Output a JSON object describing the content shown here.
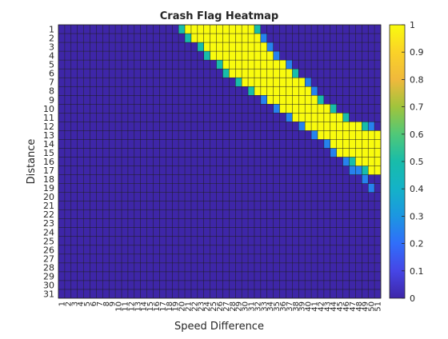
{
  "chart_data": {
    "type": "heatmap",
    "title": "Crash Flag Heatmap",
    "xlabel": "Speed Difference",
    "ylabel": "Distance",
    "x": [
      1,
      2,
      3,
      4,
      5,
      6,
      7,
      8,
      9,
      10,
      11,
      12,
      13,
      14,
      15,
      16,
      17,
      18,
      19,
      20,
      21,
      22,
      23,
      24,
      25,
      26,
      27,
      28,
      29,
      30,
      31,
      32,
      33,
      34,
      35,
      36,
      37,
      38,
      39,
      40,
      41,
      42,
      43,
      44,
      45,
      46,
      47,
      48,
      49,
      50,
      51
    ],
    "y": [
      1,
      2,
      3,
      4,
      5,
      6,
      7,
      8,
      9,
      10,
      11,
      12,
      13,
      14,
      15,
      16,
      17,
      18,
      19,
      20,
      21,
      22,
      23,
      24,
      25,
      26,
      27,
      28,
      29,
      30,
      31
    ],
    "rows": [
      {
        "distance": 1,
        "low": [
          [
            20,
            0.5
          ]
        ],
        "ones": [
          21,
          31
        ],
        "high": [
          [
            32,
            0.5
          ]
        ]
      },
      {
        "distance": 2,
        "low": [
          [
            21,
            0.5
          ]
        ],
        "ones": [
          22,
          32
        ],
        "high": [
          [
            33,
            0.25
          ]
        ]
      },
      {
        "distance": 3,
        "low": [
          [
            23,
            0.5
          ]
        ],
        "ones": [
          24,
          33
        ],
        "high": [
          [
            34,
            0.25
          ]
        ]
      },
      {
        "distance": 4,
        "low": [
          [
            24,
            0.5
          ]
        ],
        "ones": [
          25,
          34
        ],
        "high": [
          [
            35,
            0.25
          ]
        ]
      },
      {
        "distance": 5,
        "low": [
          [
            26,
            0.5
          ]
        ],
        "ones": [
          27,
          36
        ],
        "high": [
          [
            37,
            0.25
          ]
        ]
      },
      {
        "distance": 6,
        "low": [
          [
            27,
            0.5
          ]
        ],
        "ones": [
          28,
          37
        ],
        "high": [
          [
            38,
            0.5
          ]
        ]
      },
      {
        "distance": 7,
        "low": [
          [
            29,
            0.5
          ]
        ],
        "ones": [
          30,
          39
        ],
        "high": [
          [
            40,
            0.25
          ]
        ]
      },
      {
        "distance": 8,
        "low": [
          [
            31,
            0.5
          ]
        ],
        "ones": [
          32,
          40
        ],
        "high": [
          [
            41,
            0.25
          ]
        ]
      },
      {
        "distance": 9,
        "low": [
          [
            33,
            0.25
          ]
        ],
        "ones": [
          34,
          41
        ],
        "high": [
          [
            42,
            0.5
          ]
        ]
      },
      {
        "distance": 10,
        "low": [
          [
            35,
            0.25
          ]
        ],
        "ones": [
          36,
          43
        ],
        "high": [
          [
            44,
            0.5
          ]
        ]
      },
      {
        "distance": 11,
        "low": [
          [
            37,
            0.25
          ]
        ],
        "ones": [
          38,
          45
        ],
        "high": [
          [
            46,
            0.5
          ]
        ]
      },
      {
        "distance": 12,
        "low": [
          [
            39,
            0.25
          ]
        ],
        "ones": [
          40,
          48
        ],
        "high": [
          [
            49,
            0.5
          ],
          [
            50,
            0.25
          ]
        ]
      },
      {
        "distance": 13,
        "low": [
          [
            41,
            0.25
          ]
        ],
        "ones": [
          42,
          51
        ],
        "high": []
      },
      {
        "distance": 14,
        "low": [
          [
            43,
            0.25
          ]
        ],
        "ones": [
          44,
          51
        ],
        "high": []
      },
      {
        "distance": 15,
        "low": [
          [
            44,
            0.25
          ]
        ],
        "ones": [
          45,
          51
        ],
        "high": []
      },
      {
        "distance": 16,
        "low": [
          [
            46,
            0.25
          ],
          [
            47,
            0.5
          ]
        ],
        "ones": [
          48,
          51
        ],
        "high": []
      },
      {
        "distance": 17,
        "low": [
          [
            47,
            0.25
          ],
          [
            48,
            0.25
          ],
          [
            49,
            0.5
          ]
        ],
        "ones": [
          50,
          51
        ],
        "high": []
      },
      {
        "distance": 18,
        "low": [
          [
            49,
            0.25
          ]
        ],
        "ones": [],
        "high": []
      },
      {
        "distance": 19,
        "low": [
          [
            50,
            0.25
          ]
        ],
        "ones": [],
        "high": []
      }
    ],
    "colorbar": {
      "range": [
        0,
        1
      ],
      "ticks": [
        "0",
        "0.1",
        "0.2",
        "0.3",
        "0.4",
        "0.5",
        "0.6",
        "0.7",
        "0.8",
        "0.9",
        "1"
      ]
    },
    "colormap": "parula",
    "grid": "on"
  }
}
